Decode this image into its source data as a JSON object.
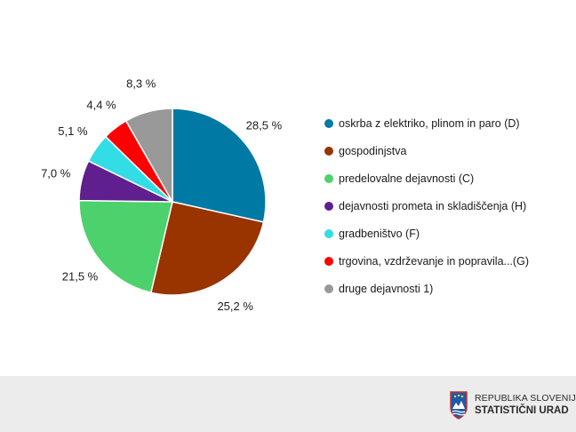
{
  "chart_data": {
    "type": "pie",
    "start_angle_deg": 0,
    "direction": "clockwise",
    "legend_position": "right",
    "slices": [
      {
        "label": "oskrba z elektriko, plinom in paro (D)",
        "value": 28.5,
        "value_label": "28,5 %",
        "color": "#0079a5"
      },
      {
        "label": "gospodinjstva",
        "value": 25.2,
        "value_label": "25,2 %",
        "color": "#993300"
      },
      {
        "label": "predelovalne dejavnosti (C)",
        "value": 21.5,
        "value_label": "21,5 %",
        "color": "#4dd16c"
      },
      {
        "label": "dejavnosti prometa in skladiščenja (H)",
        "value": 7.0,
        "value_label": "7,0 %",
        "color": "#5f1f8f"
      },
      {
        "label": "gradbeništvo (F)",
        "value": 5.1,
        "value_label": "5,1 %",
        "color": "#33dde6"
      },
      {
        "label": "trgovina, vzdrževanje in popravila...(G)",
        "value": 4.4,
        "value_label": "4,4 %",
        "color": "#ff0000"
      },
      {
        "label": "druge dejavnosti 1)",
        "value": 8.3,
        "value_label": "8,3 %",
        "color": "#999999"
      }
    ]
  },
  "footer": {
    "org_line1": "REPUBLIKA SLOVENIJA",
    "org_line2": "STATISTIČNI URAD",
    "crest_icon": "slovenia-coat-of-arms-icon"
  }
}
